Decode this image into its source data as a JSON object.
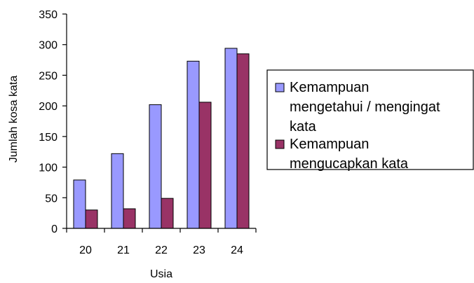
{
  "chart_data": {
    "type": "bar",
    "title": "",
    "xlabel": "Usia",
    "ylabel": "Jumlah kosa kata",
    "categories": [
      "20",
      "21",
      "22",
      "23",
      "24"
    ],
    "ylim": [
      0,
      350
    ],
    "yticks": [
      "0",
      "50",
      "100",
      "150",
      "200",
      "250",
      "300",
      "350"
    ],
    "grid": false,
    "legend_position": "right",
    "series": [
      {
        "name": "Kemampuan mengetahui / mengingat kata",
        "legend_lines": [
          "Kemampuan",
          "mengetahui / mengingat",
          "kata"
        ],
        "color": "#9999ff",
        "values": [
          79,
          122,
          202,
          273,
          294
        ]
      },
      {
        "name": "Kemampuan mengucapkan kata",
        "legend_lines": [
          "Kemampuan",
          "mengucapkan kata"
        ],
        "color": "#993366",
        "values": [
          30,
          32,
          49,
          206,
          285
        ]
      }
    ]
  }
}
